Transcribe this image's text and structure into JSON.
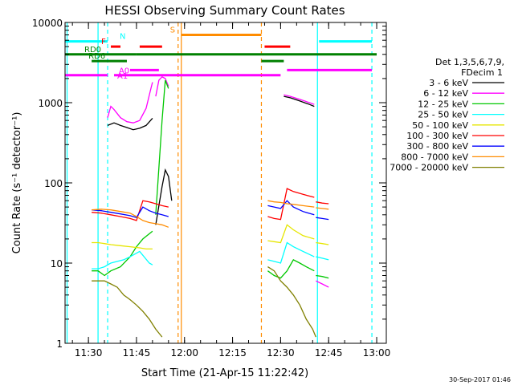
{
  "chart_data": {
    "type": "line",
    "title": "HESSI Observing Summary Count Rates",
    "xlabel": "Start Time (21-Apr-15 11:22:42)",
    "ylabel": "Count Rate (s⁻¹ detector⁻¹)",
    "y_scale": "log",
    "xlim": [
      "11:22:42",
      "13:03:00"
    ],
    "ylim": [
      1,
      10000
    ],
    "x_ticks": [
      "11:30",
      "11:45",
      "12:00",
      "12:15",
      "12:30",
      "12:45",
      "13:00"
    ],
    "y_ticks": [
      "1",
      "10",
      "100",
      "1000",
      "10000"
    ],
    "footer_date": "30-Sep-2017 01:46",
    "legend": {
      "title_lines": [
        "Det 1,3,5,6,7,9,",
        "FDecim 1"
      ],
      "position": "right"
    },
    "series": [
      {
        "name": "3 - 6 keV",
        "color": "#000000",
        "segments": [
          [
            [
              "11:36:00",
              520
            ],
            [
              "11:38:00",
              560
            ],
            [
              "11:40:00",
              520
            ],
            [
              "11:42:00",
              490
            ],
            [
              "11:44:00",
              460
            ],
            [
              "11:46:00",
              480
            ],
            [
              "11:48:00",
              520
            ],
            [
              "11:50:00",
              640
            ]
          ],
          [
            [
              "11:51:00",
              30
            ],
            [
              "11:53:00",
              90
            ],
            [
              "11:54:00",
              145
            ],
            [
              "11:55:00",
              120
            ],
            [
              "11:56:00",
              60
            ]
          ],
          [
            [
              "12:31:00",
              1200
            ],
            [
              "12:33:00",
              1150
            ],
            [
              "12:36:00",
              1050
            ],
            [
              "12:39:00",
              950
            ],
            [
              "12:40:30",
              900
            ]
          ]
        ]
      },
      {
        "name": "6 - 12 keV",
        "color": "#ff00ff",
        "segments": [
          [
            [
              "11:36:00",
              650
            ],
            [
              "11:37:00",
              900
            ],
            [
              "11:38:00",
              820
            ],
            [
              "11:40:00",
              650
            ],
            [
              "11:42:00",
              580
            ],
            [
              "11:44:00",
              560
            ],
            [
              "11:46:00",
              600
            ],
            [
              "11:48:00",
              850
            ],
            [
              "11:49:30",
              1500
            ],
            [
              "11:50:00",
              1800
            ]
          ],
          [
            [
              "11:51:00",
              1200
            ],
            [
              "11:52:00",
              1900
            ],
            [
              "11:53:00",
              2100
            ],
            [
              "11:54:00",
              2000
            ],
            [
              "11:55:00",
              1600
            ]
          ],
          [
            [
              "12:31:00",
              1250
            ],
            [
              "12:33:00",
              1200
            ],
            [
              "12:36:00",
              1100
            ],
            [
              "12:39:00",
              1000
            ],
            [
              "12:40:30",
              950
            ]
          ],
          [
            [
              "12:41:00",
              6
            ],
            [
              "12:43:00",
              5.5
            ],
            [
              "12:45:00",
              5
            ]
          ]
        ]
      },
      {
        "name": "12 - 25 keV",
        "color": "#00c800",
        "segments": [
          [
            [
              "11:31:00",
              8
            ],
            [
              "11:33:00",
              8
            ],
            [
              "11:35:00",
              7
            ],
            [
              "11:37:00",
              8
            ],
            [
              "11:40:00",
              9
            ],
            [
              "11:43:00",
              12
            ],
            [
              "11:45:00",
              16
            ],
            [
              "11:47:00",
              20
            ],
            [
              "11:50:00",
              25
            ]
          ],
          [
            [
              "11:51:00",
              40
            ],
            [
              "11:53:00",
              600
            ],
            [
              "11:54:00",
              1900
            ],
            [
              "11:55:00",
              1500
            ]
          ],
          [
            [
              "12:26:00",
              8
            ],
            [
              "12:28:00",
              7
            ],
            [
              "12:30:00",
              6.5
            ],
            [
              "12:32:00",
              8
            ],
            [
              "12:34:00",
              11
            ],
            [
              "12:36:00",
              10
            ],
            [
              "12:38:00",
              9
            ],
            [
              "12:40:30",
              8
            ]
          ],
          [
            [
              "12:41:00",
              7
            ],
            [
              "12:43:00",
              6.8
            ],
            [
              "12:45:00",
              6.5
            ]
          ]
        ]
      },
      {
        "name": "25 - 50 keV",
        "color": "#00ffff",
        "segments": [
          [
            [
              "11:31:00",
              8.5
            ],
            [
              "11:33:00",
              8.5
            ],
            [
              "11:35:00",
              9
            ],
            [
              "11:37:00",
              10
            ],
            [
              "11:39:00",
              10.5
            ],
            [
              "11:41:00",
              11
            ],
            [
              "11:43:00",
              12
            ],
            [
              "11:46:00",
              14
            ],
            [
              "11:49:00",
              10
            ],
            [
              "11:50:00",
              9.5
            ]
          ],
          [
            [
              "12:26:00",
              11
            ],
            [
              "12:28:00",
              10.5
            ],
            [
              "12:30:00",
              10
            ],
            [
              "12:32:00",
              18
            ],
            [
              "12:34:00",
              16
            ],
            [
              "12:37:00",
              14
            ],
            [
              "12:40:30",
              12
            ]
          ],
          [
            [
              "12:41:00",
              12
            ],
            [
              "12:43:00",
              11.5
            ],
            [
              "12:45:00",
              11
            ]
          ]
        ]
      },
      {
        "name": "50 - 100 keV",
        "color": "#e6e600",
        "segments": [
          [
            [
              "11:31:00",
              18
            ],
            [
              "11:33:00",
              18
            ],
            [
              "11:35:00",
              17.5
            ],
            [
              "11:37:00",
              17
            ],
            [
              "11:40:00",
              16.5
            ],
            [
              "11:43:00",
              16
            ],
            [
              "11:46:00",
              15.5
            ],
            [
              "11:48:00",
              15
            ],
            [
              "11:50:00",
              15
            ]
          ],
          [
            [
              "12:26:00",
              19
            ],
            [
              "12:28:00",
              18.5
            ],
            [
              "12:30:00",
              18
            ],
            [
              "12:32:00",
              30
            ],
            [
              "12:34:00",
              26
            ],
            [
              "12:37:00",
              22
            ],
            [
              "12:40:30",
              20
            ]
          ],
          [
            [
              "12:41:00",
              18
            ],
            [
              "12:43:00",
              17.5
            ],
            [
              "12:45:00",
              17
            ]
          ]
        ]
      },
      {
        "name": "100 - 300 keV",
        "color": "#ff0000",
        "segments": [
          [
            [
              "11:31:00",
              43
            ],
            [
              "11:34:00",
              42
            ],
            [
              "11:37:00",
              40
            ],
            [
              "11:40:00",
              38
            ],
            [
              "11:43:00",
              36
            ],
            [
              "11:45:00",
              34
            ],
            [
              "11:47:00",
              60
            ],
            [
              "11:49:00",
              58
            ],
            [
              "11:51:00",
              55
            ],
            [
              "11:53:00",
              52
            ],
            [
              "11:55:00",
              50
            ]
          ],
          [
            [
              "12:26:00",
              38
            ],
            [
              "12:28:00",
              36
            ],
            [
              "12:30:00",
              35
            ],
            [
              "12:32:00",
              85
            ],
            [
              "12:34:00",
              78
            ],
            [
              "12:37:00",
              72
            ],
            [
              "12:40:30",
              66
            ]
          ],
          [
            [
              "12:41:00",
              58
            ],
            [
              "12:43:00",
              56
            ],
            [
              "12:45:00",
              55
            ]
          ]
        ]
      },
      {
        "name": "300 - 800 keV",
        "color": "#0000ff",
        "segments": [
          [
            [
              "11:31:00",
              46
            ],
            [
              "11:34:00",
              45
            ],
            [
              "11:37:00",
              43
            ],
            [
              "11:40:00",
              41
            ],
            [
              "11:43:00",
              39
            ],
            [
              "11:45:00",
              37
            ],
            [
              "11:47:00",
              50
            ],
            [
              "11:49:00",
              45
            ],
            [
              "11:51:00",
              42
            ],
            [
              "11:53:00",
              40
            ],
            [
              "11:55:00",
              38
            ]
          ],
          [
            [
              "12:26:00",
              52
            ],
            [
              "12:28:00",
              50
            ],
            [
              "12:30:00",
              48
            ],
            [
              "12:32:00",
              60
            ],
            [
              "12:34:00",
              50
            ],
            [
              "12:37:00",
              44
            ],
            [
              "12:40:30",
              40
            ]
          ],
          [
            [
              "12:41:00",
              37
            ],
            [
              "12:43:00",
              36
            ],
            [
              "12:45:00",
              35
            ]
          ]
        ]
      },
      {
        "name": "800 - 7000 keV",
        "color": "#ff8c00",
        "segments": [
          [
            [
              "11:31:00",
              46
            ],
            [
              "11:34:00",
              47
            ],
            [
              "11:37:00",
              46
            ],
            [
              "11:40:00",
              44
            ],
            [
              "11:43:00",
              42
            ],
            [
              "11:45:00",
              38
            ],
            [
              "11:47:00",
              34
            ],
            [
              "11:49:00",
              32
            ],
            [
              "11:51:00",
              31
            ],
            [
              "11:53:00",
              30
            ],
            [
              "11:55:00",
              28
            ]
          ],
          [
            [
              "12:26:00",
              60
            ],
            [
              "12:28:00",
              58
            ],
            [
              "12:30:00",
              57
            ],
            [
              "12:32:00",
              55
            ],
            [
              "12:34:00",
              54
            ],
            [
              "12:37:00",
              52
            ],
            [
              "12:40:30",
              50
            ]
          ],
          [
            [
              "12:41:00",
              49
            ],
            [
              "12:43:00",
              48
            ],
            [
              "12:45:00",
              47
            ]
          ]
        ]
      },
      {
        "name": "7000 - 20000 keV",
        "color": "#808000",
        "segments": [
          [
            [
              "11:31:00",
              6
            ],
            [
              "11:33:00",
              6
            ],
            [
              "11:35:00",
              6
            ],
            [
              "11:37:00",
              5.5
            ],
            [
              "11:39:00",
              5
            ],
            [
              "11:41:00",
              4
            ],
            [
              "11:43:00",
              3.5
            ],
            [
              "11:45:00",
              3
            ],
            [
              "11:47:00",
              2.5
            ],
            [
              "11:49:00",
              2
            ],
            [
              "11:51:00",
              1.5
            ],
            [
              "11:53:00",
              1.2
            ]
          ],
          [
            [
              "12:26:00",
              9
            ],
            [
              "12:28:00",
              8
            ],
            [
              "12:30:00",
              6
            ],
            [
              "12:32:00",
              5
            ],
            [
              "12:34:00",
              4
            ],
            [
              "12:36:00",
              3
            ],
            [
              "12:38:00",
              2
            ],
            [
              "12:40:00",
              1.5
            ],
            [
              "12:41:00",
              1.2
            ]
          ]
        ]
      }
    ],
    "vertical_lines": [
      {
        "time": "11:23:20",
        "color": "#00ffff",
        "style": "solid"
      },
      {
        "time": "11:33:00",
        "color": "#00ffff",
        "style": "solid"
      },
      {
        "time": "11:36:00",
        "color": "#00ffff",
        "style": "dashed"
      },
      {
        "time": "11:58:00",
        "color": "#ff8c00",
        "style": "dashed"
      },
      {
        "time": "11:59:00",
        "color": "#ff8c00",
        "style": "solid"
      },
      {
        "time": "12:24:00",
        "color": "#ff8c00",
        "style": "dashed"
      },
      {
        "time": "12:41:30",
        "color": "#00ffff",
        "style": "solid"
      },
      {
        "time": "12:58:30",
        "color": "#00ffff",
        "style": "dashed"
      }
    ],
    "flag_bars": [
      {
        "label": "N",
        "color": "#00ffff",
        "y": 5800,
        "segments": [
          [
            "11:22:42",
            "11:36:00"
          ],
          [
            "12:42:00",
            "12:58:30"
          ]
        ]
      },
      {
        "label": "S",
        "color": "#ff8c00",
        "y": 7000,
        "segments": [
          [
            "11:59:00",
            "12:24:00"
          ]
        ]
      },
      {
        "label": "F",
        "color": "#ff0000",
        "y": 5000,
        "segments": [
          [
            "11:37:00",
            "11:40:00"
          ],
          [
            "11:46:00",
            "11:53:00"
          ],
          [
            "12:25:00",
            "12:33:00"
          ]
        ]
      },
      {
        "label": "RD0",
        "color": "#008000",
        "y": 4000,
        "segments": [
          [
            "11:22:42",
            "11:45:00"
          ],
          [
            "11:45:00",
            "12:24:00"
          ],
          [
            "12:24:00",
            "13:00:00"
          ]
        ]
      },
      {
        "label": "RD6",
        "color": "#008000",
        "y": 3300,
        "segments": [
          [
            "11:31:00",
            "11:42:00"
          ],
          [
            "12:24:00",
            "12:31:00"
          ]
        ]
      },
      {
        "label": "A0",
        "color": "#ff00ff",
        "y": 2550,
        "segments": [
          [
            "11:43:00",
            "11:52:00"
          ],
          [
            "12:32:00",
            "12:58:30"
          ]
        ]
      },
      {
        "label": "A1",
        "color": "#ff00ff",
        "y": 2200,
        "segments": [
          [
            "11:22:42",
            "11:36:00"
          ],
          [
            "11:38:00",
            "12:30:00"
          ]
        ]
      }
    ]
  }
}
